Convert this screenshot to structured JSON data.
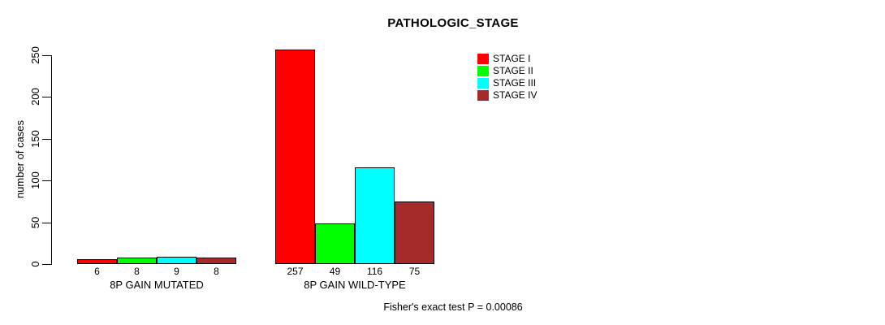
{
  "title": "PATHOLOGIC_STAGE",
  "footer": "Fisher's exact test P = 0.00086",
  "chart_data": {
    "type": "bar",
    "title": "PATHOLOGIC_STAGE",
    "xlabel": "",
    "ylabel": "number of cases",
    "categories": [
      "8P GAIN MUTATED",
      "8P GAIN WILD-TYPE"
    ],
    "series": [
      {
        "name": "STAGE I",
        "color": "#FF0000",
        "values": [
          6,
          257
        ]
      },
      {
        "name": "STAGE II",
        "color": "#00FF00",
        "values": [
          8,
          49
        ]
      },
      {
        "name": "STAGE III",
        "color": "#00FFFF",
        "values": [
          9,
          116
        ]
      },
      {
        "name": "STAGE IV",
        "color": "#A52A2A",
        "values": [
          8,
          75
        ]
      }
    ],
    "yticks": [
      0,
      50,
      100,
      150,
      200,
      250
    ],
    "ylim": [
      0,
      250
    ],
    "bar_value_labels": [
      [
        6,
        8,
        9,
        8
      ],
      [
        257,
        49,
        116,
        75
      ]
    ],
    "grid": false,
    "legend_position": "top-right",
    "annotation": "Fisher's exact test P = 0.00086"
  }
}
